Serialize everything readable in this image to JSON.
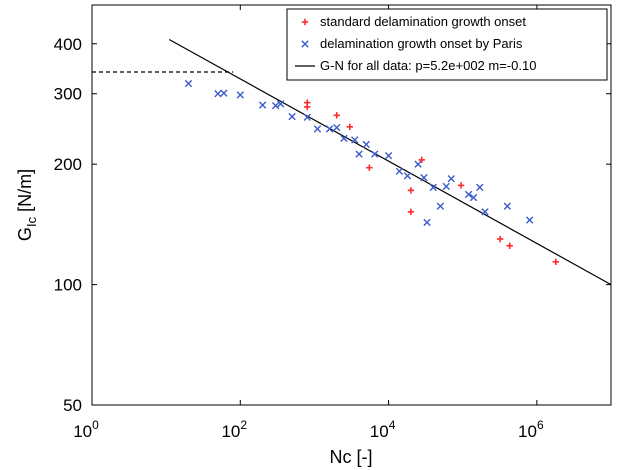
{
  "chart_data": {
    "type": "scatter",
    "xscale": "log",
    "yscale": "log",
    "xlim": [
      1,
      10000000
    ],
    "ylim": [
      50,
      500
    ],
    "xlabel": "Nc [-]",
    "ylabel_main": "G",
    "ylabel_sub": "Ic",
    "ylabel_unit": " [N/m]",
    "xticks": [
      {
        "value": 1,
        "base": "10",
        "exp": "0"
      },
      {
        "value": 100,
        "base": "10",
        "exp": "2"
      },
      {
        "value": 10000,
        "base": "10",
        "exp": "4"
      },
      {
        "value": 1000000,
        "base": "10",
        "exp": "6"
      }
    ],
    "yticks": [
      {
        "value": 50,
        "label": "50"
      },
      {
        "value": 100,
        "label": "100"
      },
      {
        "value": 200,
        "label": "200"
      },
      {
        "value": 300,
        "label": "300"
      },
      {
        "value": 400,
        "label": "400"
      }
    ],
    "legend_position": "top-right",
    "series": [
      {
        "name": "standard delamination growth onset",
        "marker": "plus",
        "color": "#ff2a2a",
        "points": [
          [
            800,
            285
          ],
          [
            800,
            278
          ],
          [
            2000,
            265
          ],
          [
            3000,
            248
          ],
          [
            5500,
            196
          ],
          [
            20000,
            172
          ],
          [
            20000,
            152
          ],
          [
            28000,
            205
          ],
          [
            95000,
            177
          ],
          [
            320000,
            130
          ],
          [
            430000,
            125
          ],
          [
            1800000,
            114
          ]
        ]
      },
      {
        "name": "delamination growth onset by Paris",
        "marker": "x",
        "color": "#3a5ccc",
        "points": [
          [
            20,
            318
          ],
          [
            50,
            300
          ],
          [
            60,
            301
          ],
          [
            100,
            298
          ],
          [
            200,
            281
          ],
          [
            300,
            280
          ],
          [
            350,
            283
          ],
          [
            500,
            263
          ],
          [
            800,
            262
          ],
          [
            1100,
            245
          ],
          [
            1600,
            245
          ],
          [
            2000,
            247
          ],
          [
            2500,
            232
          ],
          [
            3500,
            230
          ],
          [
            4000,
            212
          ],
          [
            5000,
            224
          ],
          [
            6500,
            212
          ],
          [
            10000,
            210
          ],
          [
            14000,
            192
          ],
          [
            18000,
            187
          ],
          [
            25000,
            200
          ],
          [
            30000,
            185
          ],
          [
            33000,
            143
          ],
          [
            40000,
            175
          ],
          [
            50000,
            157
          ],
          [
            60000,
            176
          ],
          [
            70000,
            184
          ],
          [
            120000,
            168
          ],
          [
            140000,
            165
          ],
          [
            170000,
            175
          ],
          [
            200000,
            152
          ],
          [
            400000,
            157
          ],
          [
            800000,
            145
          ]
        ]
      }
    ],
    "fit_line": {
      "name": "G-N for all data: p=5.2e+002 m=-0.10",
      "color": "#000000",
      "from": [
        11,
        410
      ],
      "to": [
        10000000,
        100
      ]
    },
    "reference_line": {
      "style": "dashed",
      "from": [
        1,
        340
      ],
      "to": [
        80,
        340
      ]
    }
  }
}
